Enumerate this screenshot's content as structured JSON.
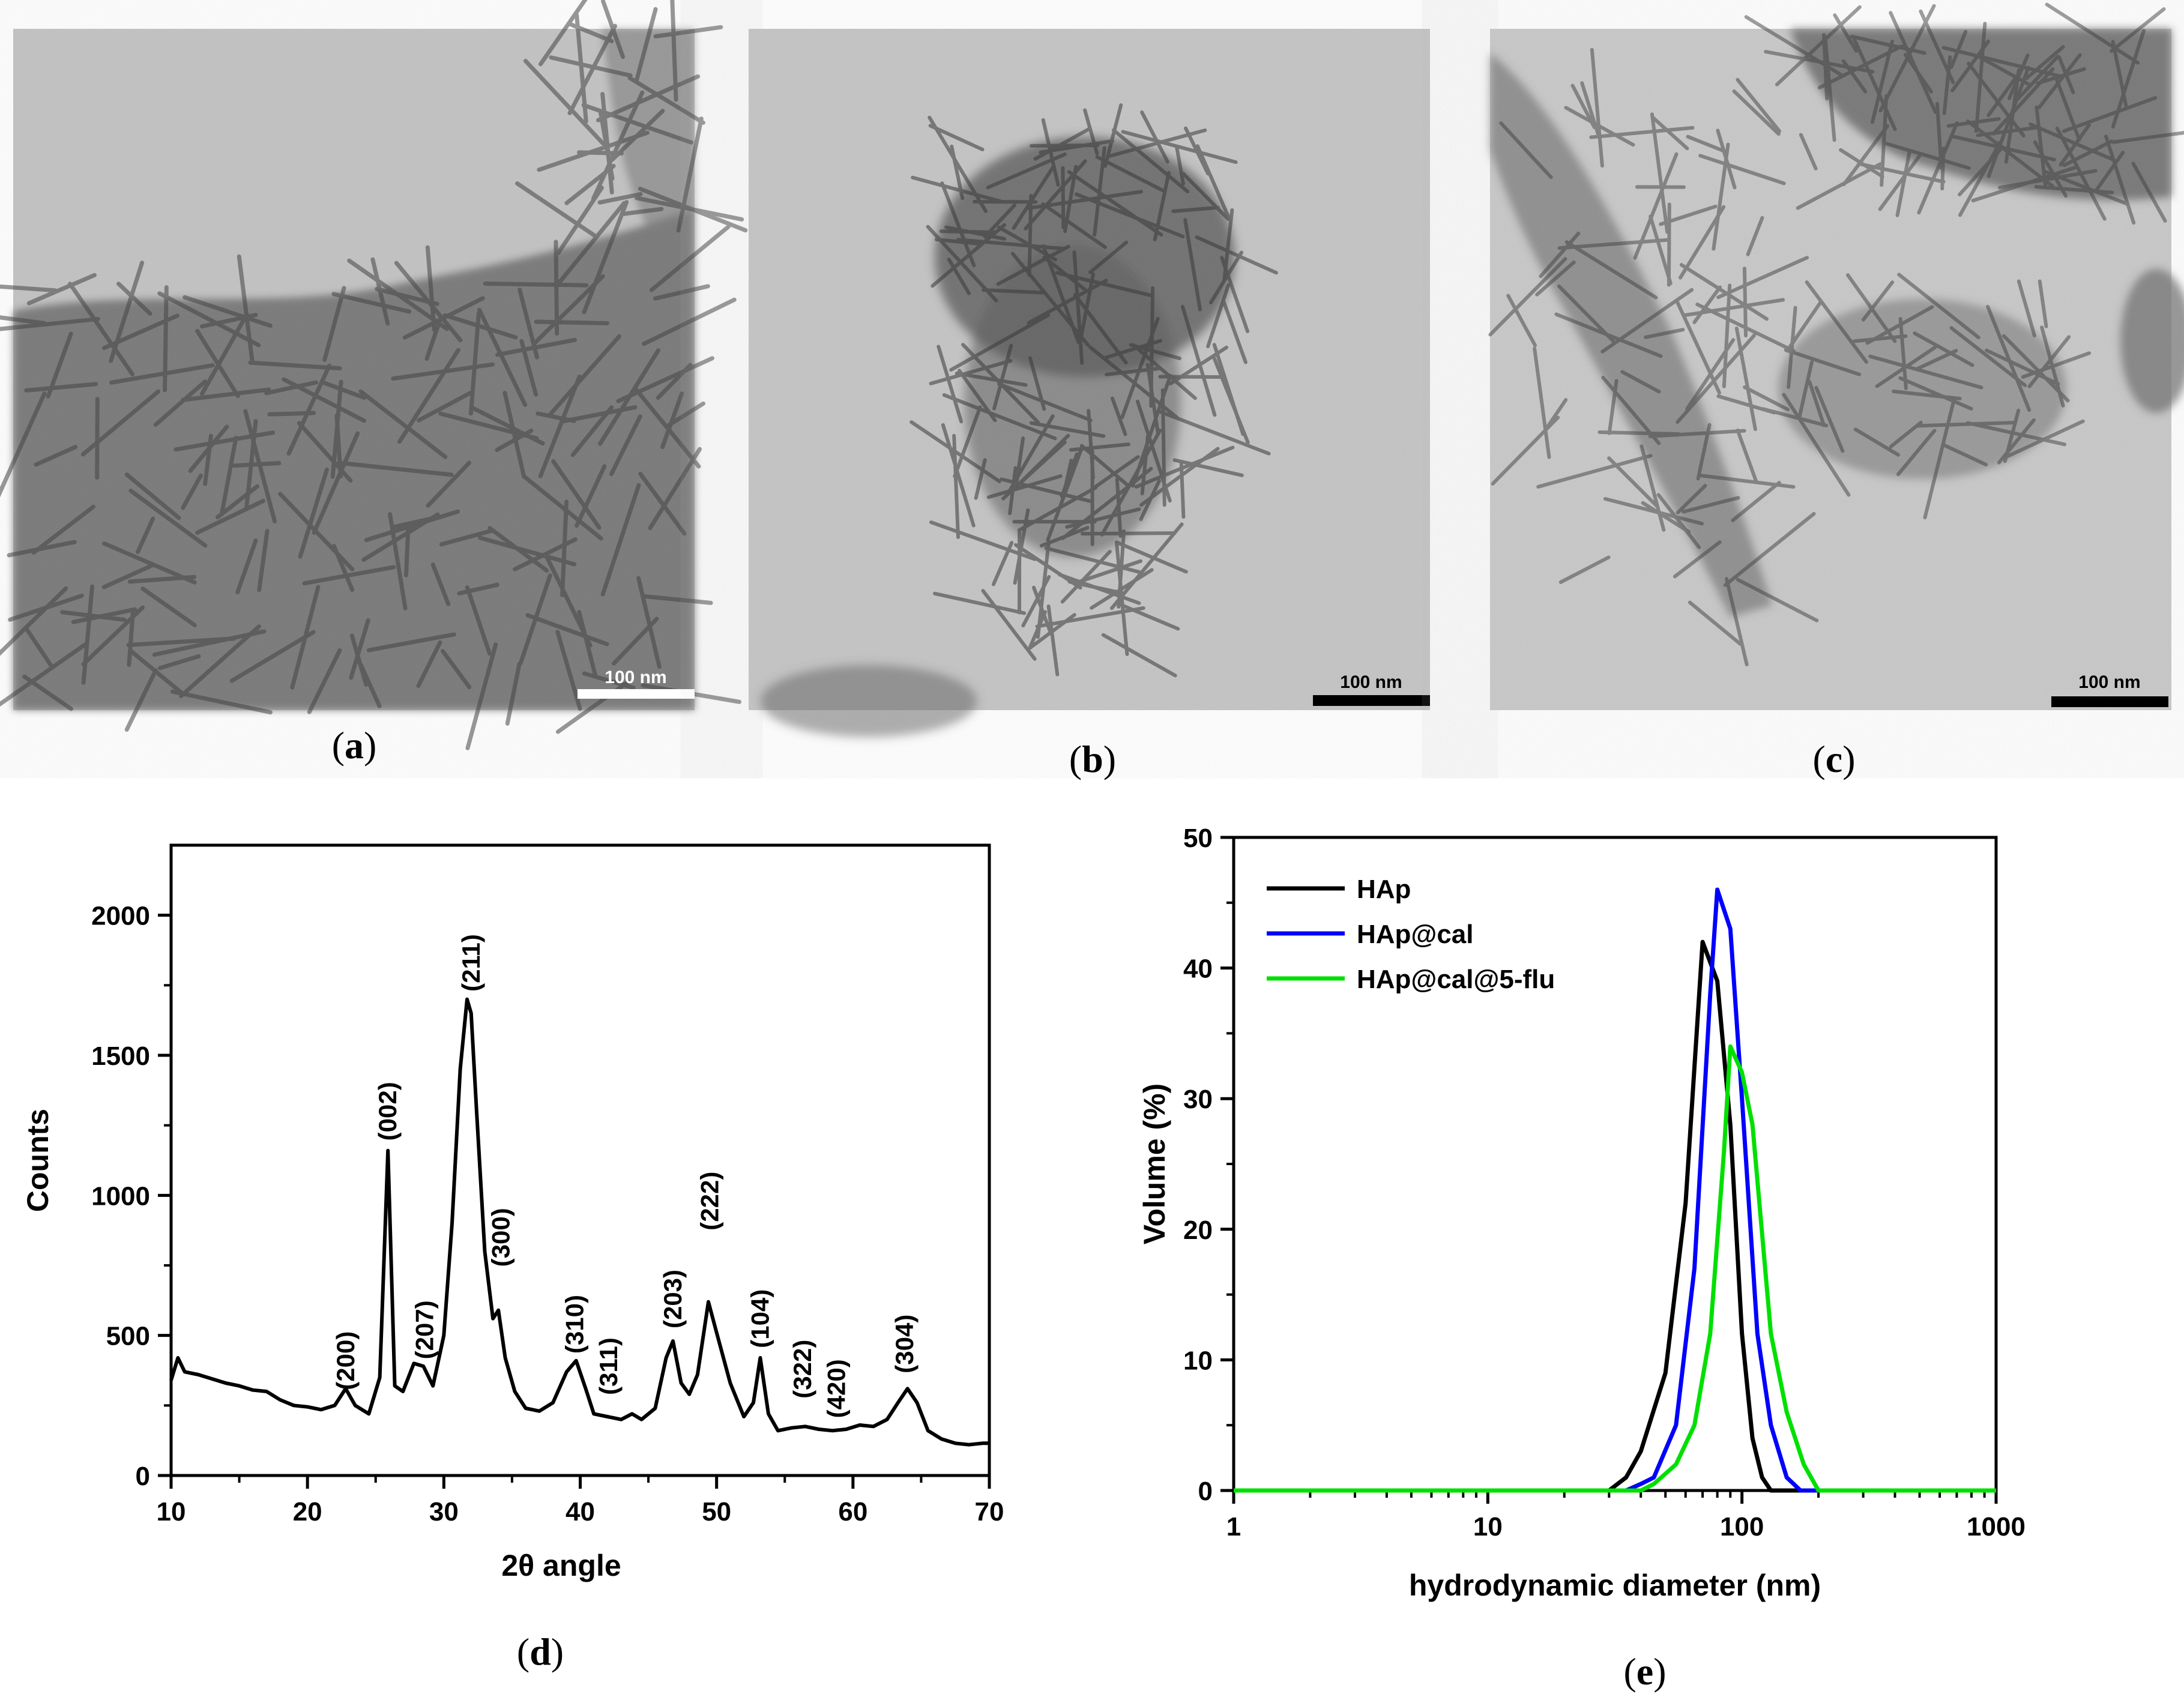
{
  "panels": {
    "a": {
      "caption_letter": "a",
      "scale_bar": "100 nm"
    },
    "b": {
      "caption_letter": "b",
      "scale_bar": "100 nm"
    },
    "c": {
      "caption_letter": "c",
      "scale_bar": "100 nm"
    },
    "d": {
      "caption_letter": "d"
    },
    "e": {
      "caption_letter": "e"
    }
  },
  "chart_data": [
    {
      "panel": "d",
      "type": "line",
      "xlabel": "2θ angle",
      "ylabel": "Counts",
      "xlim": [
        10,
        70
      ],
      "ylim": [
        0,
        2250
      ],
      "xticks": [
        10,
        20,
        30,
        40,
        50,
        60,
        70
      ],
      "yticks": [
        0,
        500,
        1000,
        1500,
        2000
      ],
      "grid": false,
      "series": [
        {
          "color": "#000000",
          "x": [
            10,
            10.5,
            11,
            12,
            13,
            14,
            15,
            16,
            17,
            18,
            19,
            20,
            21,
            22,
            22.8,
            23.5,
            24.5,
            25.3,
            25.9,
            26.4,
            27,
            27.8,
            28.5,
            29.2,
            30,
            30.6,
            31.2,
            31.7,
            32,
            32.4,
            33,
            33.6,
            34,
            34.5,
            35.2,
            36,
            37,
            38,
            39,
            39.7,
            40.4,
            41,
            42,
            43,
            43.8,
            44.5,
            45.5,
            46.3,
            46.8,
            47.4,
            48,
            48.6,
            49.4,
            50,
            51,
            52,
            52.7,
            53.2,
            53.8,
            54.5,
            55.5,
            56.5,
            57.5,
            58.5,
            59.5,
            60.5,
            61.5,
            62.5,
            63.3,
            64,
            64.7,
            65.5,
            66.5,
            67.5,
            68.5,
            69.5,
            70
          ],
          "y": [
            340,
            420,
            370,
            360,
            345,
            330,
            320,
            305,
            300,
            270,
            250,
            245,
            235,
            250,
            310,
            250,
            220,
            350,
            1160,
            320,
            300,
            400,
            390,
            320,
            500,
            900,
            1450,
            1700,
            1650,
            1300,
            800,
            560,
            590,
            420,
            300,
            240,
            230,
            260,
            370,
            410,
            310,
            220,
            210,
            200,
            220,
            200,
            240,
            420,
            480,
            330,
            290,
            360,
            620,
            510,
            330,
            210,
            260,
            420,
            220,
            160,
            170,
            175,
            165,
            160,
            165,
            180,
            175,
            200,
            260,
            310,
            260,
            160,
            130,
            115,
            110,
            115,
            115
          ]
        }
      ],
      "annotations": [
        "(200)",
        "(002)",
        "(207)",
        "(211)",
        "(300)",
        "(310)",
        "(311)",
        "(203)",
        "(222)",
        "(104)",
        "(322)",
        "(420)",
        "(304)"
      ]
    },
    {
      "panel": "e",
      "type": "line",
      "xlabel": "hydrodynamic diameter (nm)",
      "ylabel": "Volume (%)",
      "xscale": "log",
      "xlim": [
        1,
        1000
      ],
      "ylim": [
        0,
        50
      ],
      "xticks": [
        1,
        10,
        100,
        1000
      ],
      "yticks": [
        0,
        10,
        20,
        30,
        40,
        50
      ],
      "grid": false,
      "legend": "top-left",
      "series": [
        {
          "name": "HAp",
          "color": "#000000",
          "x": [
            1,
            30,
            35,
            40,
            50,
            60,
            70,
            80,
            90,
            100,
            110,
            120,
            130,
            1000
          ],
          "y": [
            0,
            0,
            1,
            3,
            9,
            22,
            42,
            39,
            28,
            12,
            4,
            1,
            0,
            0
          ]
        },
        {
          "name": "HAp@cal",
          "color": "#0000ff",
          "x": [
            1,
            35,
            40,
            45,
            55,
            65,
            75,
            80,
            90,
            100,
            115,
            130,
            150,
            170,
            1000
          ],
          "y": [
            0,
            0,
            0.5,
            1,
            5,
            17,
            38,
            46,
            43,
            30,
            12,
            5,
            1,
            0,
            0
          ]
        },
        {
          "name": "HAp@cal@5-flu",
          "color": "#00e000",
          "x": [
            1,
            40,
            45,
            55,
            65,
            75,
            85,
            90,
            100,
            110,
            130,
            150,
            175,
            200,
            1000
          ],
          "y": [
            0,
            0,
            0.5,
            2,
            5,
            12,
            26,
            34,
            32,
            28,
            12,
            6,
            2,
            0,
            0
          ]
        }
      ]
    }
  ]
}
